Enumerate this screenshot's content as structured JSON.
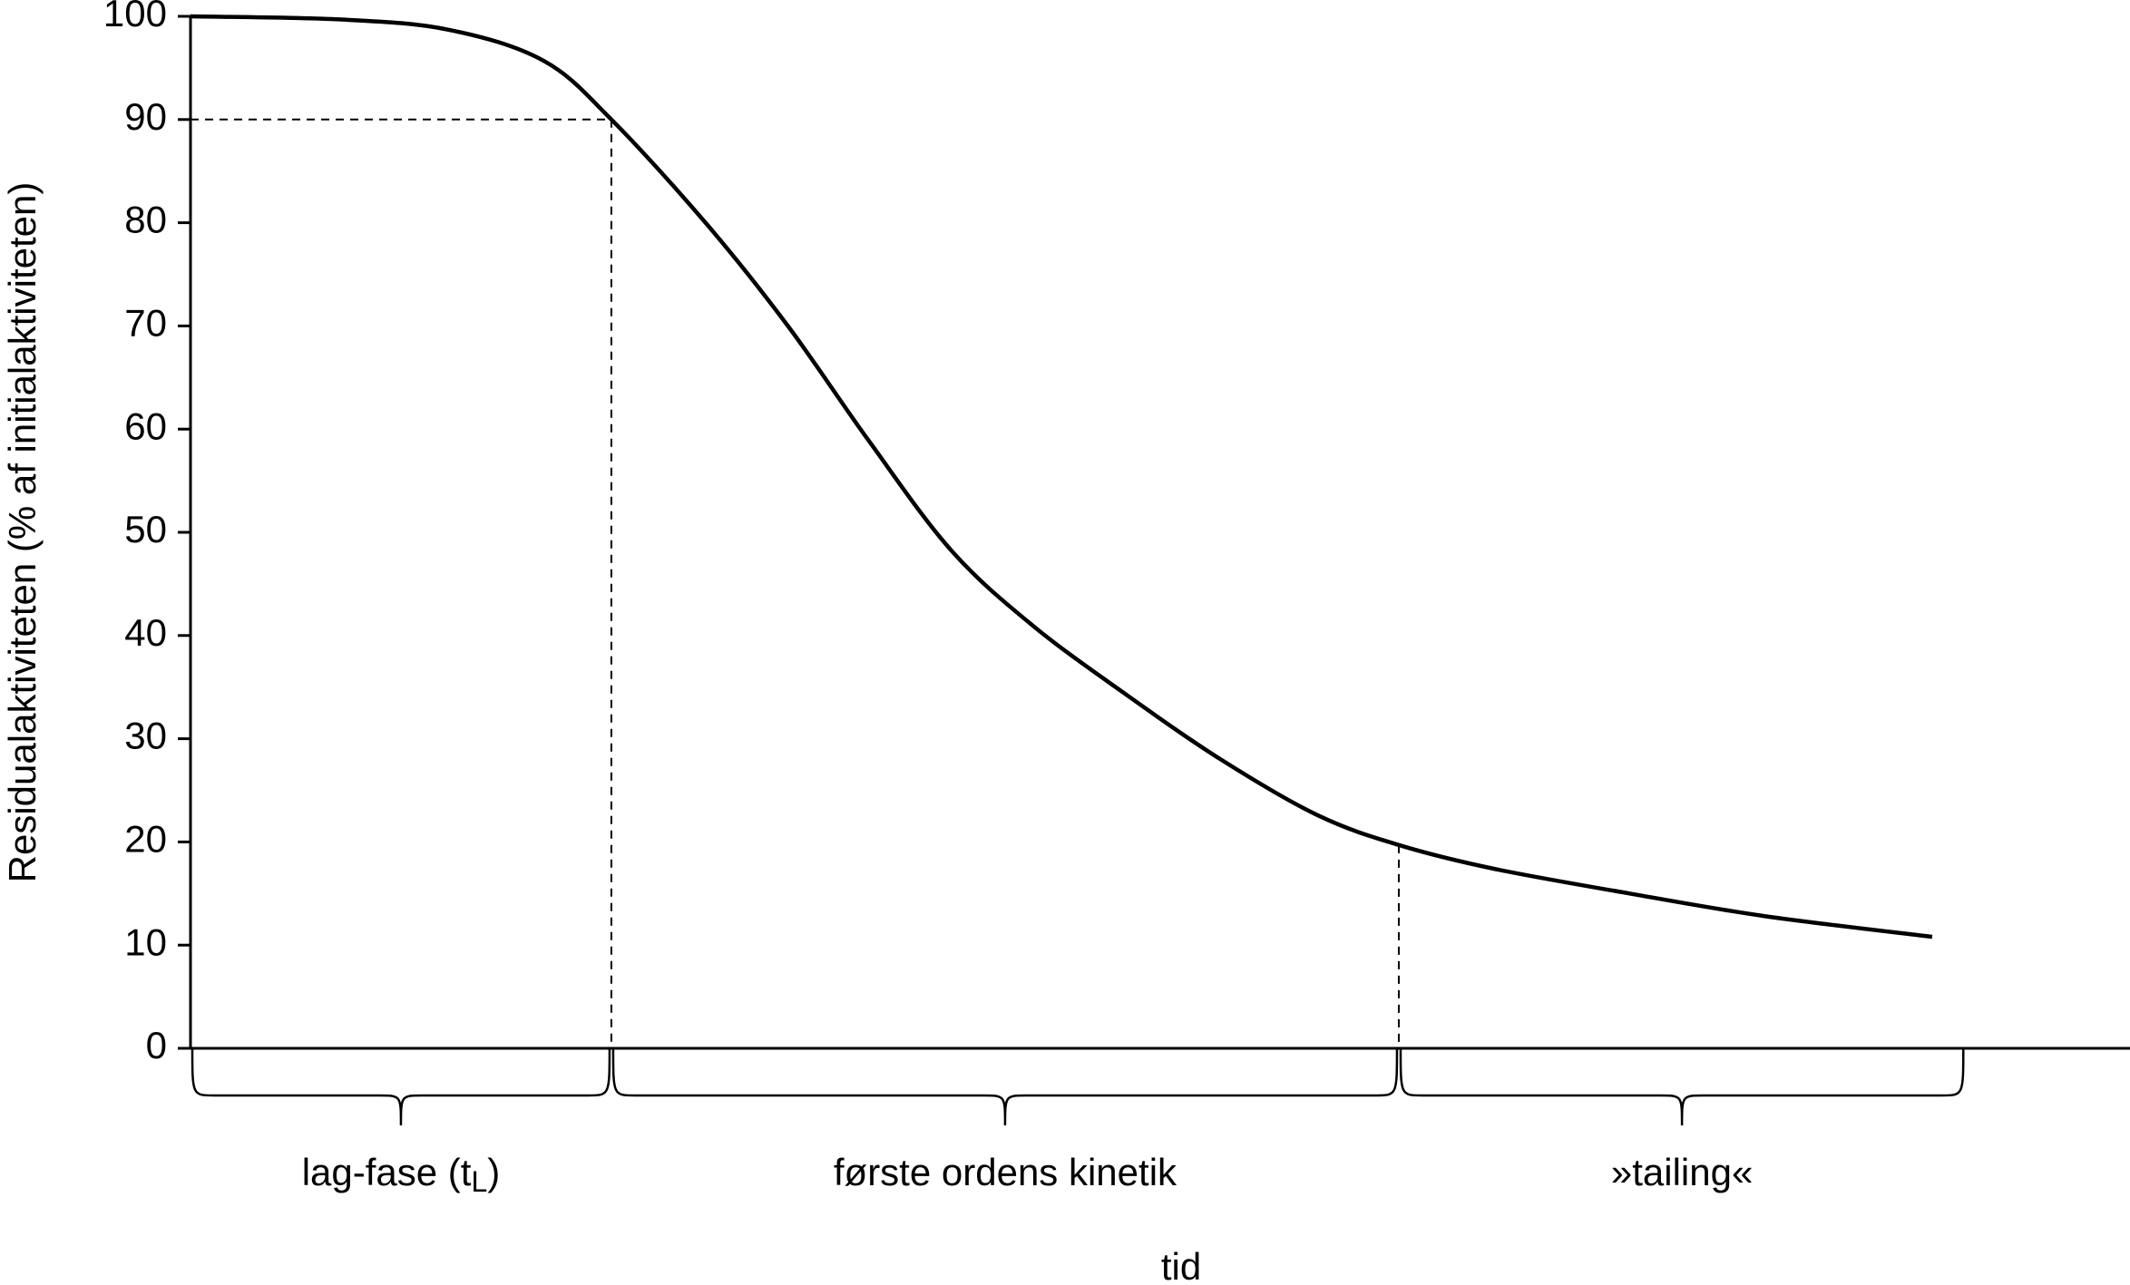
{
  "chart_data": {
    "type": "line",
    "ylabel": "Residualaktiviteten (% af initialaktiviteten)",
    "xlabel": "tid",
    "xlim": [
      0,
      100
    ],
    "ylim": [
      0,
      100
    ],
    "yticks": [
      0,
      10,
      20,
      30,
      40,
      50,
      60,
      70,
      80,
      90,
      100
    ],
    "series": [
      {
        "color": "#000000",
        "x": [
          0,
          7.7,
          13.3,
          18.2,
          21.7,
          26.6,
          30.8,
          35,
          39.2,
          43.4,
          48.3,
          53.2,
          58.1,
          62.3,
          67.2,
          74.2,
          81.2,
          89.8
        ],
        "values": [
          100,
          99.7,
          98.7,
          95.7,
          90,
          79.9,
          70,
          58.8,
          48.3,
          41,
          34.2,
          27.9,
          22.6,
          19.7,
          17.4,
          15,
          12.8,
          10.8
        ]
      }
    ],
    "guides": [
      {
        "x": 21.7,
        "y": 90
      },
      {
        "x": 62.3,
        "y": 19.7
      }
    ],
    "braces": [
      {
        "range": [
          0,
          21.7
        ],
        "label_parts": [
          "lag-fase (t",
          "L",
          ")"
        ]
      },
      {
        "range": [
          21.7,
          62.3
        ],
        "label_parts": [
          "første ordens kinetik"
        ]
      },
      {
        "range": [
          62.3,
          91.5
        ],
        "label_parts": [
          "»tailing«"
        ]
      }
    ]
  }
}
